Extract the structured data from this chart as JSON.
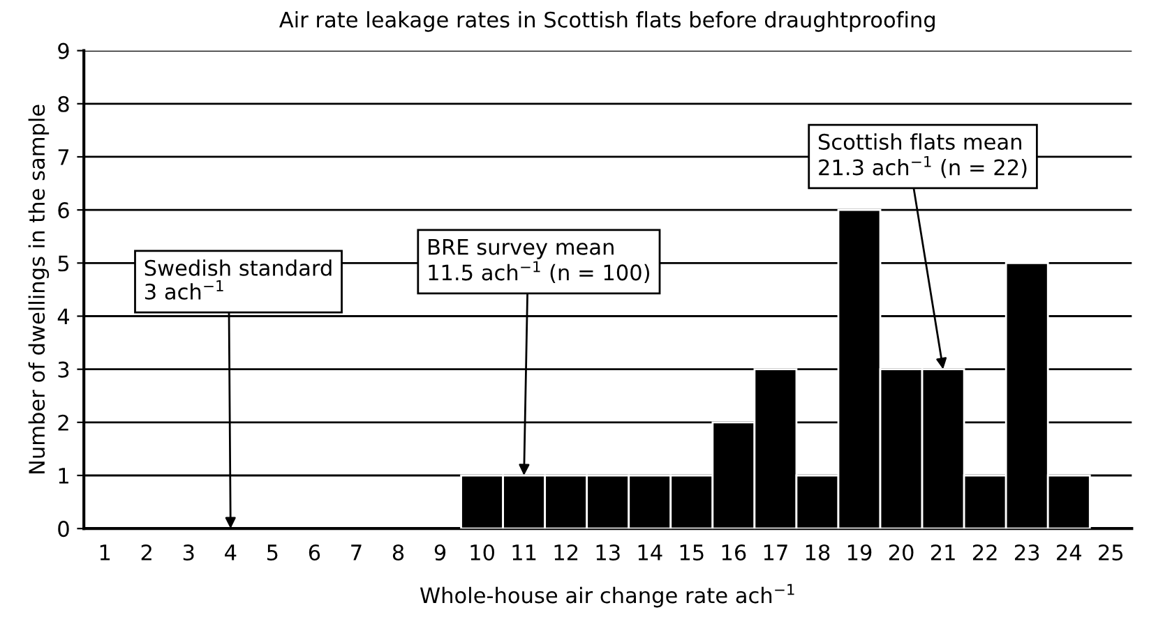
{
  "chart_data": {
    "type": "bar",
    "title": "Air rate leakage rates in Scottish flats before draughtproofing",
    "xlabel": "Whole-house air change rate ach$^{−1}$",
    "ylabel": "Number of dwellings in the sample",
    "categories": [
      "1",
      "2",
      "3",
      "4",
      "5",
      "6",
      "7",
      "8",
      "9",
      "10",
      "11",
      "12",
      "13",
      "14",
      "15",
      "16",
      "17",
      "18",
      "19",
      "20",
      "21",
      "22",
      "23",
      "24",
      "25"
    ],
    "values": [
      0,
      0,
      0,
      0,
      0,
      0,
      0,
      0,
      0,
      1,
      1,
      1,
      1,
      1,
      1,
      2,
      3,
      1,
      6,
      3,
      3,
      1,
      5,
      1,
      0
    ],
    "color": "#000000",
    "ylim": [
      0,
      9
    ],
    "yticks": [
      0,
      1,
      2,
      3,
      4,
      5,
      6,
      7,
      8,
      9
    ],
    "grid": "y",
    "annotations": [
      {
        "text": "Swedish standard\n3 ach$^{−1}$",
        "x": "4",
        "y": 0
      },
      {
        "text": "BRE survey mean\n11.5 ach$^{−1}$ (n = 100)",
        "x": "11",
        "y": 1
      },
      {
        "text": "Scottish flats mean\n21.3 ach$^{−1}$ (n = 22)",
        "x": "21",
        "y": 3
      }
    ]
  }
}
